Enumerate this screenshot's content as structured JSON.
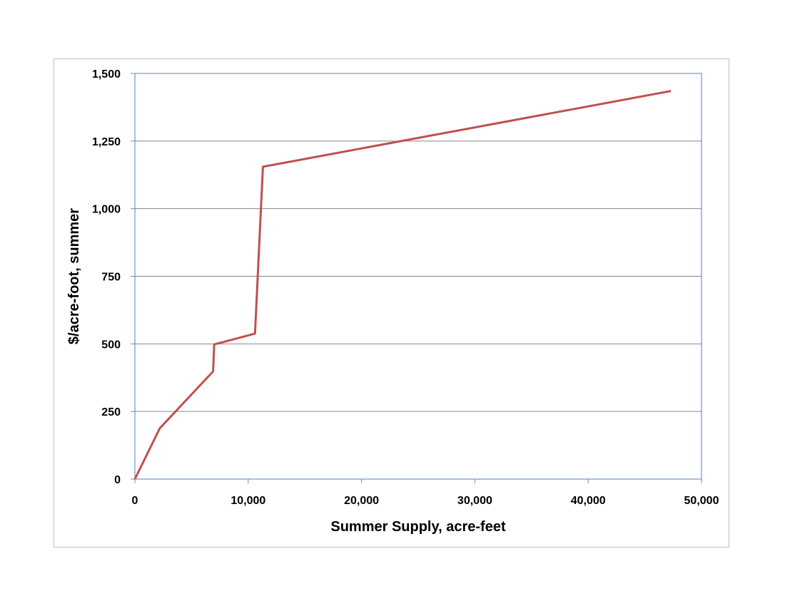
{
  "chart_data": {
    "type": "line",
    "title": "",
    "xlabel": "Summer Supply, acre-feet",
    "ylabel": "$/acre-foot, summer",
    "xlim": [
      0,
      50000
    ],
    "ylim": [
      0,
      1500
    ],
    "x_ticks": [
      0,
      10000,
      20000,
      30000,
      40000,
      50000
    ],
    "x_tick_labels": [
      "0",
      "10,000",
      "20,000",
      "30,000",
      "40,000",
      "50,000"
    ],
    "y_ticks": [
      0,
      250,
      500,
      750,
      1000,
      1250,
      1500
    ],
    "y_tick_labels": [
      "0",
      "250",
      "500",
      "750",
      "1,000",
      "1,250",
      "1,500"
    ],
    "grid": "horizontal",
    "legend": "none",
    "series": [
      {
        "color": "#c0504d",
        "x": [
          0,
          2200,
          6900,
          7000,
          10600,
          11300,
          47300
        ],
        "y": [
          0,
          188,
          398,
          498,
          538,
          1155,
          1435
        ]
      }
    ]
  }
}
